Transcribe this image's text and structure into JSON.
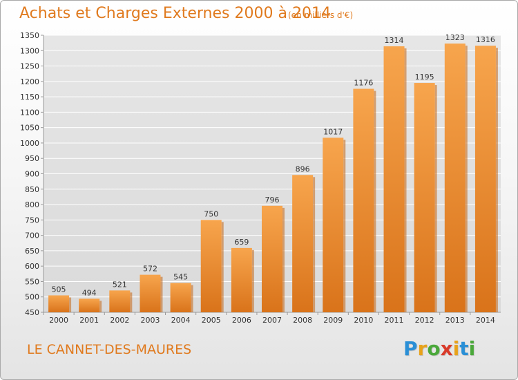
{
  "header": {
    "title": "Achats et Charges Externes 2000 à 2014",
    "subtitle": "(en milliers d'€)"
  },
  "footer": {
    "commune": "LE CANNET-DES-MAURES",
    "logo": [
      "P",
      "r",
      "o",
      "x",
      "i",
      "t",
      "i"
    ],
    "logo_colors": [
      "#2a8fd6",
      "#e8a21a",
      "#4aa83a",
      "#d93a2a",
      "#e8a21a",
      "#2a8fd6",
      "#4aa83a"
    ]
  },
  "colors": {
    "bar_top": "#f7a54d",
    "bar_bottom": "#d9731a",
    "bar_side": "#c46614",
    "text": "#333333",
    "grid": "#ffffff",
    "axis": "#999999",
    "title": "#e07a1e"
  },
  "chart_data": {
    "type": "bar",
    "title": "Achats et Charges Externes 2000 à 2014",
    "subtitle": "(en milliers d'€)",
    "categories": [
      "2000",
      "2001",
      "2002",
      "2003",
      "2004",
      "2005",
      "2006",
      "2007",
      "2008",
      "2009",
      "2010",
      "2011",
      "2012",
      "2013",
      "2014"
    ],
    "values": [
      505,
      494,
      521,
      572,
      545,
      750,
      659,
      796,
      896,
      1017,
      1176,
      1314,
      1195,
      1323,
      1316
    ],
    "data_labels": [
      "505",
      "494",
      "521",
      "572",
      "545",
      "750",
      "659",
      "796",
      "896",
      "1017",
      "1176",
      "1314",
      "1195",
      "1323",
      "1316"
    ],
    "ylim": [
      450,
      1350
    ],
    "yticks": [
      450,
      500,
      550,
      600,
      650,
      700,
      750,
      800,
      850,
      900,
      950,
      1000,
      1050,
      1100,
      1150,
      1200,
      1250,
      1300,
      1350
    ],
    "xlabel": "",
    "ylabel": "",
    "grid": true,
    "legend": "none"
  }
}
